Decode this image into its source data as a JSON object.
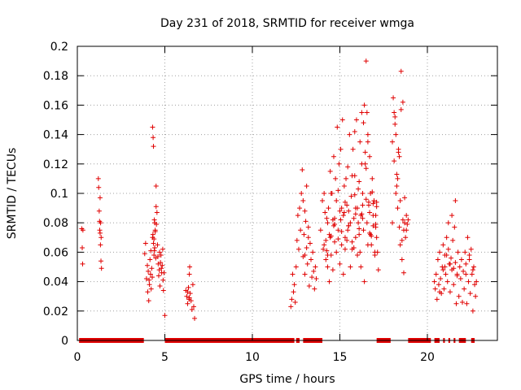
{
  "chart_data": {
    "type": "scatter",
    "title": "Day 231 of 2018, SRMTID for receiver wmga",
    "xlabel": "GPS time / hours",
    "ylabel": "SRMTID / TECUs",
    "xlim": [
      0,
      24
    ],
    "ylim": [
      0,
      0.2
    ],
    "xticks": [
      0,
      5,
      10,
      15,
      20
    ],
    "xtick_labels": [
      "0",
      "5",
      "10",
      "15",
      "20"
    ],
    "yticks": [
      0,
      0.02,
      0.04,
      0.06,
      0.08,
      0.1,
      0.12,
      0.14,
      0.16,
      0.18,
      0.2
    ],
    "ytick_labels": [
      "0",
      "0.02",
      "0.04",
      "0.06",
      "0.08",
      "0.1",
      "0.12",
      "0.14",
      "0.16",
      "0.18",
      "0.2"
    ],
    "grid": true,
    "marker": "+",
    "color": "#e00000",
    "series": [
      {
        "name": "SRMTID",
        "x": [
          0.25,
          0.28,
          0.3,
          0.32,
          1.2,
          1.22,
          1.25,
          1.27,
          1.3,
          1.32,
          1.35,
          1.38,
          1.3,
          1.33,
          1.36,
          1.28,
          3.85,
          3.9,
          3.95,
          4.0,
          4.02,
          4.05,
          4.08,
          4.1,
          4.12,
          4.15,
          4.18,
          4.2,
          4.22,
          4.25,
          4.28,
          4.3,
          4.33,
          4.35,
          4.38,
          4.4,
          4.42,
          4.45,
          4.48,
          4.5,
          4.52,
          4.55,
          4.58,
          4.6,
          4.62,
          4.65,
          4.68,
          4.7,
          4.72,
          4.75,
          4.78,
          4.8,
          4.82,
          4.85,
          4.88,
          4.9,
          4.92,
          4.95,
          5.0,
          4.32,
          4.35,
          4.38,
          4.42,
          4.3,
          4.5,
          4.4,
          4.45,
          6.2,
          6.25,
          6.3,
          6.35,
          6.38,
          6.4,
          6.42,
          6.45,
          6.5,
          6.55,
          6.6,
          6.65,
          6.7,
          6.3,
          6.4,
          12.2,
          12.25,
          12.3,
          12.35,
          12.4,
          12.45,
          12.5,
          12.55,
          12.6,
          12.65,
          12.7,
          12.75,
          12.8,
          12.85,
          12.9,
          12.95,
          13.0,
          13.05,
          13.1,
          13.15,
          13.2,
          13.25,
          13.3,
          13.35,
          13.4,
          13.45,
          13.5,
          13.55,
          13.6,
          13.65,
          12.9,
          13.0,
          13.1,
          13.2,
          13.0,
          13.9,
          14.0,
          14.05,
          14.1,
          14.15,
          14.2,
          14.25,
          14.3,
          14.35,
          14.4,
          14.45,
          14.5,
          14.55,
          14.6,
          14.65,
          14.7,
          14.75,
          14.8,
          14.85,
          14.9,
          14.95,
          15.0,
          15.05,
          15.1,
          15.15,
          15.2,
          15.25,
          15.3,
          15.35,
          15.4,
          15.45,
          15.5,
          15.55,
          15.6,
          15.65,
          15.7,
          15.75,
          15.8,
          15.85,
          15.9,
          15.95,
          16.0,
          16.05,
          16.1,
          16.15,
          16.2,
          16.25,
          16.3,
          16.35,
          16.4,
          16.45,
          16.5,
          16.55,
          16.6,
          16.65,
          16.7,
          16.75,
          16.8,
          16.85,
          16.9,
          16.95,
          17.0,
          17.05,
          17.1,
          17.15,
          17.2,
          14.2,
          14.4,
          14.6,
          14.8,
          15.0,
          15.2,
          15.4,
          15.6,
          15.8,
          16.0,
          16.2,
          16.4,
          16.6,
          16.8,
          17.0,
          14.3,
          14.7,
          15.1,
          15.5,
          15.9,
          16.3,
          16.7,
          17.1,
          14.5,
          15.3,
          16.1,
          16.9,
          14.9,
          15.7,
          16.5,
          16.55,
          16.35,
          16.6,
          16.25,
          16.45,
          15.85,
          16.15,
          16.75,
          17.05,
          14.1,
          14.3,
          14.5,
          14.7,
          14.9,
          15.1,
          15.3,
          15.5,
          15.7,
          15.9,
          16.1,
          16.3,
          16.5,
          16.7,
          16.9,
          17.1,
          14.25,
          14.65,
          15.05,
          15.45,
          15.85,
          16.25,
          16.65,
          17.05,
          14.45,
          15.25,
          16.05,
          16.85,
          18.0,
          18.05,
          18.1,
          18.15,
          18.2,
          18.25,
          18.3,
          18.35,
          18.4,
          18.45,
          18.5,
          18.55,
          18.6,
          18.65,
          18.7,
          18.75,
          18.8,
          18.85,
          18.9,
          18.1,
          18.2,
          18.3,
          18.4,
          18.5,
          18.6,
          18.7,
          18.8,
          18.0,
          18.45,
          18.55,
          18.65,
          18.35,
          18.25,
          18.15,
          20.4,
          20.45,
          20.5,
          20.55,
          20.6,
          20.65,
          20.7,
          20.75,
          20.8,
          20.85,
          20.9,
          20.95,
          21.0,
          21.05,
          21.1,
          21.15,
          21.2,
          21.25,
          21.3,
          21.35,
          21.4,
          21.45,
          21.5,
          21.55,
          21.6,
          21.65,
          21.7,
          21.75,
          21.8,
          21.85,
          21.9,
          21.95,
          22.0,
          22.05,
          22.1,
          22.15,
          22.2,
          22.25,
          22.3,
          22.35,
          22.4,
          22.45,
          22.5,
          22.55,
          22.6,
          22.65,
          22.7,
          22.75,
          22.8,
          21.2,
          21.4,
          21.6,
          20.9,
          21.1,
          21.3,
          21.5,
          22.2,
          22.4,
          22.6,
          21.7,
          21.0,
          20.7
        ],
        "y": [
          0.076,
          0.063,
          0.052,
          0.075,
          0.11,
          0.104,
          0.088,
          0.081,
          0.073,
          0.065,
          0.054,
          0.049,
          0.097,
          0.08,
          0.07,
          0.075,
          0.059,
          0.066,
          0.042,
          0.051,
          0.033,
          0.047,
          0.027,
          0.041,
          0.038,
          0.055,
          0.045,
          0.061,
          0.035,
          0.049,
          0.043,
          0.145,
          0.138,
          0.132,
          0.069,
          0.082,
          0.063,
          0.075,
          0.056,
          0.091,
          0.079,
          0.087,
          0.065,
          0.057,
          0.052,
          0.044,
          0.048,
          0.06,
          0.037,
          0.053,
          0.058,
          0.049,
          0.046,
          0.051,
          0.062,
          0.041,
          0.034,
          0.046,
          0.017,
          0.072,
          0.066,
          0.058,
          0.08,
          0.07,
          0.105,
          0.061,
          0.074,
          0.034,
          0.03,
          0.025,
          0.036,
          0.028,
          0.045,
          0.05,
          0.032,
          0.027,
          0.021,
          0.038,
          0.023,
          0.015,
          0.033,
          0.029,
          0.023,
          0.028,
          0.045,
          0.033,
          0.038,
          0.026,
          0.05,
          0.068,
          0.085,
          0.062,
          0.09,
          0.075,
          0.1,
          0.116,
          0.057,
          0.072,
          0.045,
          0.081,
          0.063,
          0.052,
          0.07,
          0.037,
          0.066,
          0.055,
          0.043,
          0.06,
          0.047,
          0.035,
          0.05,
          0.042,
          0.095,
          0.088,
          0.105,
          0.077,
          0.058,
          0.075,
          0.095,
          0.062,
          0.1,
          0.087,
          0.068,
          0.083,
          0.05,
          0.09,
          0.072,
          0.115,
          0.058,
          0.1,
          0.082,
          0.125,
          0.067,
          0.11,
          0.095,
          0.145,
          0.075,
          0.12,
          0.088,
          0.13,
          0.065,
          0.15,
          0.085,
          0.105,
          0.07,
          0.11,
          0.092,
          0.118,
          0.078,
          0.14,
          0.08,
          0.098,
          0.062,
          0.13,
          0.083,
          0.112,
          0.07,
          0.15,
          0.09,
          0.103,
          0.072,
          0.135,
          0.085,
          0.155,
          0.1,
          0.075,
          0.16,
          0.12,
          0.19,
          0.08,
          0.14,
          0.092,
          0.125,
          0.1,
          0.065,
          0.11,
          0.078,
          0.095,
          0.058,
          0.085,
          0.07,
          0.06,
          0.048,
          0.055,
          0.04,
          0.048,
          0.06,
          0.052,
          0.045,
          0.068,
          0.05,
          0.063,
          0.058,
          0.05,
          0.04,
          0.065,
          0.071,
          0.06,
          0.08,
          0.083,
          0.09,
          0.078,
          0.086,
          0.092,
          0.087,
          0.094,
          0.1,
          0.094,
          0.108,
          0.093,
          0.102,
          0.112,
          0.117,
          0.155,
          0.148,
          0.135,
          0.12,
          0.128,
          0.142,
          0.06,
          0.072,
          0.077,
          0.065,
          0.058,
          0.071,
          0.079,
          0.069,
          0.074,
          0.062,
          0.088,
          0.067,
          0.09,
          0.076,
          0.083,
          0.096,
          0.073,
          0.085,
          0.091,
          0.061,
          0.078,
          0.082,
          0.075,
          0.099,
          0.086,
          0.094,
          0.079,
          0.07,
          0.087,
          0.08,
          0.101,
          0.135,
          0.165,
          0.122,
          0.152,
          0.1,
          0.113,
          0.09,
          0.128,
          0.077,
          0.095,
          0.157,
          0.068,
          0.082,
          0.075,
          0.097,
          0.07,
          0.085,
          0.079,
          0.082,
          0.155,
          0.14,
          0.11,
          0.125,
          0.183,
          0.162,
          0.08,
          0.075,
          0.08,
          0.065,
          0.055,
          0.046,
          0.13,
          0.105,
          0.147,
          0.04,
          0.035,
          0.045,
          0.028,
          0.055,
          0.038,
          0.06,
          0.042,
          0.032,
          0.05,
          0.065,
          0.035,
          0.058,
          0.045,
          0.07,
          0.04,
          0.062,
          0.052,
          0.033,
          0.056,
          0.048,
          0.068,
          0.038,
          0.077,
          0.053,
          0.025,
          0.044,
          0.06,
          0.03,
          0.05,
          0.042,
          0.055,
          0.026,
          0.047,
          0.035,
          0.06,
          0.045,
          0.025,
          0.07,
          0.04,
          0.055,
          0.032,
          0.062,
          0.045,
          0.02,
          0.05,
          0.038,
          0.03,
          0.04,
          0.08,
          0.085,
          0.095,
          0.048,
          0.058,
          0.052,
          0.049,
          0.052,
          0.058,
          0.048,
          0.045,
          0.05,
          0.033
        ]
      }
    ],
    "zero_segments": [
      [
        0.1,
        3.8
      ],
      [
        5.0,
        12.4
      ],
      [
        12.5,
        12.7
      ],
      [
        12.9,
        14.0
      ],
      [
        17.1,
        17.9
      ],
      [
        18.9,
        20.2
      ],
      [
        20.4,
        20.7
      ],
      [
        20.9,
        21.0
      ],
      [
        21.2,
        21.3
      ],
      [
        21.5,
        21.6
      ],
      [
        21.8,
        22.2
      ],
      [
        22.5,
        22.7
      ]
    ]
  }
}
